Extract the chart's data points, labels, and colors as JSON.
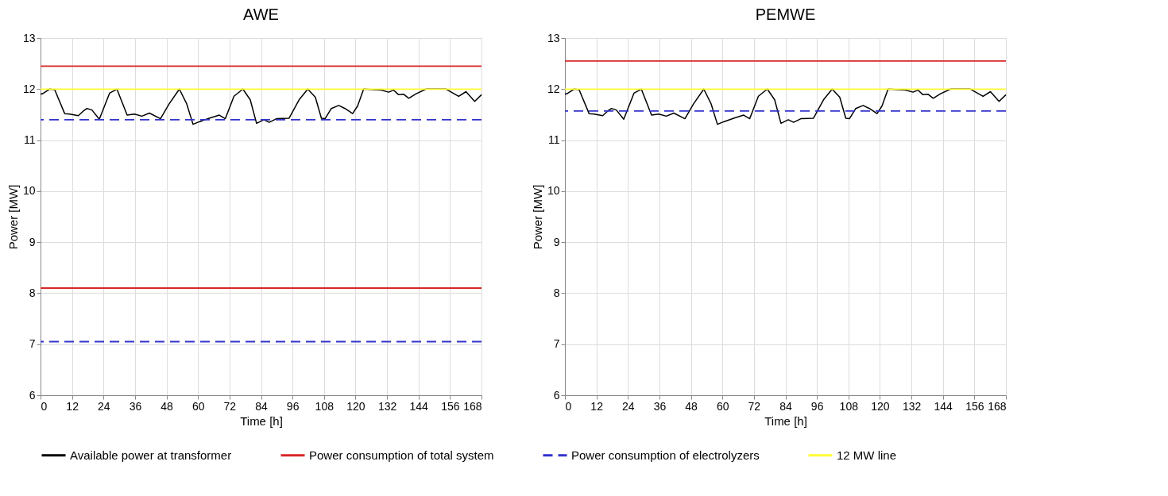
{
  "chart_data": [
    {
      "type": "line",
      "title": "AWE",
      "xlabel": "Time [h]",
      "ylabel": "Power [MW]",
      "xlim": [
        0,
        168
      ],
      "ylim": [
        6,
        13
      ],
      "xticks": [
        0,
        12,
        24,
        36,
        48,
        60,
        72,
        84,
        96,
        108,
        120,
        132,
        144,
        156,
        168
      ],
      "yticks": [
        6,
        7,
        8,
        9,
        10,
        11,
        12,
        13
      ],
      "grid": true,
      "legend": "bottom",
      "line_style": "solid",
      "marker": "none",
      "x": [
        0,
        1.1,
        3.5,
        5.4,
        9.2,
        11.1,
        14.4,
        16.3,
        17.7,
        19.6,
        22.4,
        26.3,
        29.1,
        33.0,
        35.8,
        38.6,
        41.5,
        45.7,
        49.0,
        52.9,
        55.7,
        58.1,
        60.5,
        64.3,
        68.1,
        70.4,
        73.7,
        77.1,
        79.9,
        82.3,
        85.1,
        87.1,
        89.9,
        94.7,
        98.5,
        101.8,
        104.7,
        107.0,
        108.4,
        110.8,
        113.6,
        116.0,
        118.9,
        120.8,
        123.1,
        129.8,
        132.6,
        134.5,
        136.4,
        138.3,
        140.3,
        143.1,
        146.9,
        154.5,
        159.3,
        162.1,
        165.4,
        168
      ],
      "series": [
        {
          "name": "Available power at transformer",
          "color": "#000000",
          "values": [
            11.9,
            11.92,
            12.0,
            11.99,
            11.52,
            11.51,
            11.48,
            11.57,
            11.62,
            11.59,
            11.41,
            11.92,
            12.0,
            11.49,
            11.51,
            11.47,
            11.53,
            11.42,
            11.71,
            12.0,
            11.71,
            11.31,
            11.36,
            11.43,
            11.49,
            11.42,
            11.86,
            12.0,
            11.79,
            11.33,
            11.4,
            11.35,
            11.42,
            11.43,
            11.79,
            12.0,
            11.84,
            11.43,
            11.42,
            11.62,
            11.68,
            11.62,
            11.52,
            11.67,
            12.0,
            11.98,
            11.94,
            11.98,
            11.89,
            11.9,
            11.82,
            11.91,
            12.0,
            12.0,
            11.86,
            11.95,
            11.76,
            11.89
          ]
        }
      ],
      "ref_lines": [
        {
          "axis": "y",
          "value": 12.45,
          "label": "Power consumption of total system",
          "color": "#d62728",
          "line_style": "solid"
        },
        {
          "axis": "y",
          "value": 8.1,
          "color": "#d62728",
          "line_style": "solid"
        },
        {
          "axis": "y",
          "value": 11.4,
          "label": "Power consumption of electrolyzers",
          "color": "#3333cc",
          "line_style": "dashed"
        },
        {
          "axis": "y",
          "value": 7.05,
          "color": "#3333cc",
          "line_style": "dashed"
        },
        {
          "axis": "y",
          "value": 12.0,
          "label": "12 MW line",
          "color": "#ffff33",
          "line_style": "solid"
        }
      ]
    },
    {
      "type": "line",
      "title": "PEMWE",
      "xlabel": "Time [h]",
      "ylabel": "Power [MW]",
      "xlim": [
        0,
        168
      ],
      "ylim": [
        6,
        13
      ],
      "xticks": [
        0,
        12,
        24,
        36,
        48,
        60,
        72,
        84,
        96,
        108,
        120,
        132,
        144,
        156,
        168
      ],
      "yticks": [
        6,
        7,
        8,
        9,
        10,
        11,
        12,
        13
      ],
      "grid": true,
      "line_style": "solid",
      "marker": "none",
      "x": [
        0,
        1.1,
        3.5,
        5.4,
        9.2,
        11.1,
        14.4,
        16.3,
        17.7,
        19.6,
        22.4,
        26.3,
        29.1,
        33.0,
        35.8,
        38.6,
        41.5,
        45.7,
        49.0,
        52.9,
        55.7,
        58.1,
        60.5,
        64.3,
        68.1,
        70.4,
        73.7,
        77.1,
        79.9,
        82.3,
        85.1,
        87.1,
        89.9,
        94.7,
        98.5,
        101.8,
        104.7,
        107.0,
        108.4,
        110.8,
        113.6,
        116.0,
        118.9,
        120.8,
        123.1,
        129.8,
        132.6,
        134.5,
        136.4,
        138.3,
        140.3,
        143.1,
        146.9,
        154.5,
        159.3,
        162.1,
        165.4,
        168
      ],
      "series": [
        {
          "color": "#000000",
          "values": [
            11.9,
            11.92,
            12.0,
            11.99,
            11.52,
            11.51,
            11.48,
            11.57,
            11.62,
            11.59,
            11.41,
            11.92,
            12.0,
            11.49,
            11.51,
            11.47,
            11.53,
            11.42,
            11.71,
            12.0,
            11.71,
            11.31,
            11.36,
            11.43,
            11.49,
            11.42,
            11.86,
            12.0,
            11.79,
            11.33,
            11.4,
            11.35,
            11.42,
            11.43,
            11.79,
            12.0,
            11.84,
            11.43,
            11.42,
            11.62,
            11.68,
            11.62,
            11.52,
            11.67,
            12.0,
            11.98,
            11.94,
            11.98,
            11.89,
            11.9,
            11.82,
            11.91,
            12.0,
            12.0,
            11.86,
            11.95,
            11.76,
            11.89
          ]
        }
      ],
      "ref_lines": [
        {
          "axis": "y",
          "value": 12.55,
          "color": "#d62728",
          "line_style": "solid"
        },
        {
          "axis": "y",
          "value": 11.57,
          "color": "#3333cc",
          "line_style": "dashed"
        },
        {
          "axis": "y",
          "value": 12.0,
          "color": "#ffff33",
          "line_style": "solid"
        }
      ]
    }
  ]
}
